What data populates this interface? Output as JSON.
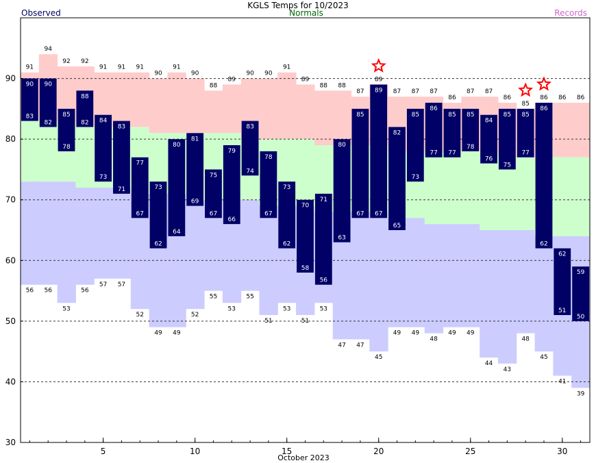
{
  "chart_data": {
    "type": "bar",
    "title": "KGLS Temps for 10/2023",
    "legend": {
      "observed": "Observed",
      "normals": "Normals",
      "records": "Records"
    },
    "xlabel": "October 2023",
    "ylim": [
      30,
      100
    ],
    "yticks": [
      30,
      40,
      50,
      60,
      70,
      80,
      90
    ],
    "xticks": [
      5,
      10,
      15,
      20,
      25,
      30
    ],
    "grid": "dashed horizontal",
    "days": [
      1,
      2,
      3,
      4,
      5,
      6,
      7,
      8,
      9,
      10,
      11,
      12,
      13,
      14,
      15,
      16,
      17,
      18,
      19,
      20,
      21,
      22,
      23,
      24,
      25,
      26,
      27,
      28,
      29,
      30,
      31
    ],
    "observed_high": [
      90,
      90,
      85,
      88,
      84,
      83,
      77,
      73,
      80,
      81,
      75,
      79,
      83,
      78,
      73,
      70,
      71,
      80,
      85,
      89,
      82,
      85,
      86,
      85,
      85,
      84,
      85,
      85,
      86,
      62,
      59
    ],
    "observed_low": [
      83,
      82,
      78,
      82,
      73,
      71,
      67,
      62,
      64,
      69,
      67,
      66,
      74,
      67,
      62,
      58,
      56,
      63,
      67,
      67,
      65,
      73,
      77,
      77,
      78,
      76,
      75,
      77,
      62,
      51,
      50
    ],
    "normal_high": [
      83,
      83,
      83,
      82,
      82,
      82,
      82,
      81,
      81,
      81,
      81,
      81,
      80,
      80,
      80,
      80,
      79,
      79,
      79,
      79,
      78,
      78,
      78,
      78,
      78,
      78,
      77,
      77,
      77,
      77,
      77
    ],
    "normal_low": [
      73,
      73,
      73,
      72,
      72,
      72,
      71,
      71,
      71,
      70,
      70,
      70,
      70,
      69,
      69,
      69,
      68,
      68,
      68,
      68,
      67,
      67,
      66,
      66,
      66,
      65,
      65,
      65,
      64,
      64,
      64
    ],
    "record_high": [
      91,
      94,
      92,
      92,
      91,
      91,
      91,
      90,
      91,
      90,
      88,
      89,
      90,
      90,
      91,
      89,
      88,
      88,
      87,
      89,
      87,
      87,
      87,
      86,
      87,
      87,
      86,
      85,
      86,
      86,
      86
    ],
    "record_low": [
      56,
      56,
      53,
      56,
      57,
      57,
      52,
      49,
      49,
      52,
      55,
      53,
      55,
      51,
      53,
      51,
      53,
      47,
      47,
      45,
      49,
      49,
      48,
      49,
      49,
      44,
      43,
      48,
      45,
      41,
      39
    ],
    "record_set_days": [
      20,
      28,
      29
    ],
    "colors": {
      "observed": "#000066",
      "normals": "#ccffcc",
      "record_high_band": "#ffcccc",
      "record_low_band": "#ccccff",
      "star": "#ff0000",
      "observed_label": "#000066",
      "normals_label": "#006600",
      "records_label": "#cc66cc"
    }
  }
}
